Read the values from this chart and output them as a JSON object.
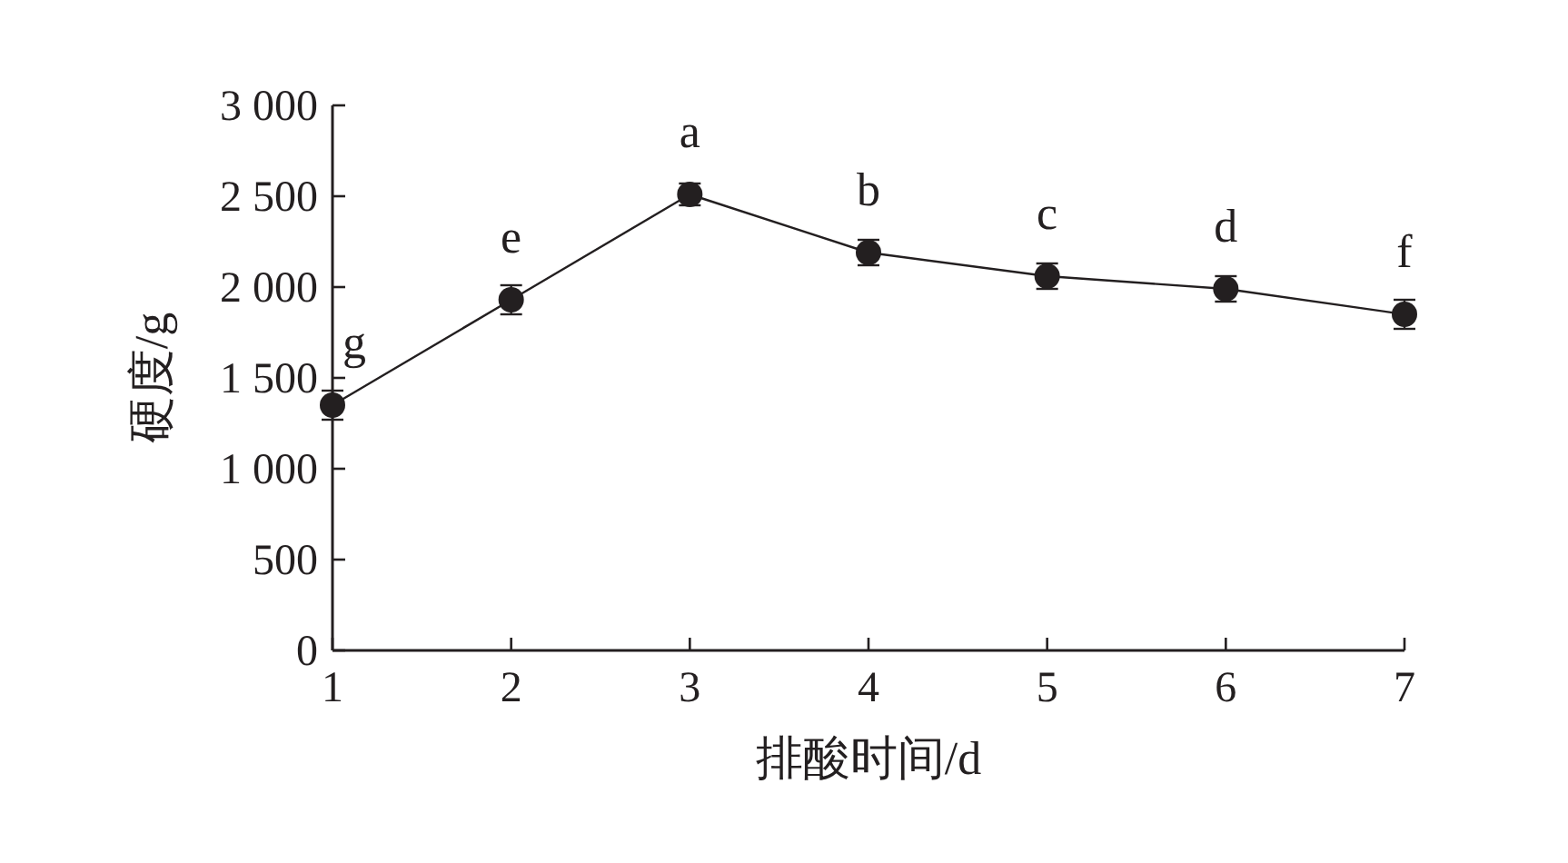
{
  "chart_data": {
    "type": "line",
    "xlabel": "排酸时间/d",
    "ylabel": "硬度/g",
    "x": [
      1,
      2,
      3,
      4,
      5,
      6,
      7
    ],
    "series": [
      {
        "color": "#231f20",
        "values": [
          1350,
          1930,
          2510,
          2190,
          2060,
          1990,
          1850
        ],
        "errors": [
          80,
          80,
          60,
          70,
          70,
          70,
          80
        ]
      }
    ],
    "xlim": [
      1,
      7
    ],
    "xticks": [
      1,
      2,
      3,
      4,
      5,
      6,
      7
    ],
    "ylim": [
      0,
      3000
    ],
    "yticks": [
      0,
      500,
      {
        "value": 1000,
        "label": "1 000"
      },
      {
        "value": 1500,
        "label": "1 500"
      },
      {
        "value": 2000,
        "label": "2 000"
      },
      {
        "value": 2500,
        "label": "2 500"
      },
      {
        "value": 3000,
        "label": "3 000"
      }
    ],
    "marker": "circle",
    "line_style": "solid",
    "annotations": [
      {
        "text": "g",
        "x": 1,
        "y": 1350
      },
      {
        "text": "e",
        "x": 2,
        "y": 1930
      },
      {
        "text": "a",
        "x": 3,
        "y": 2510
      },
      {
        "text": "b",
        "x": 4,
        "y": 2190
      },
      {
        "text": "c",
        "x": 5,
        "y": 2060
      },
      {
        "text": "d",
        "x": 6,
        "y": 1990
      },
      {
        "text": "f",
        "x": 7,
        "y": 1850
      }
    ]
  }
}
